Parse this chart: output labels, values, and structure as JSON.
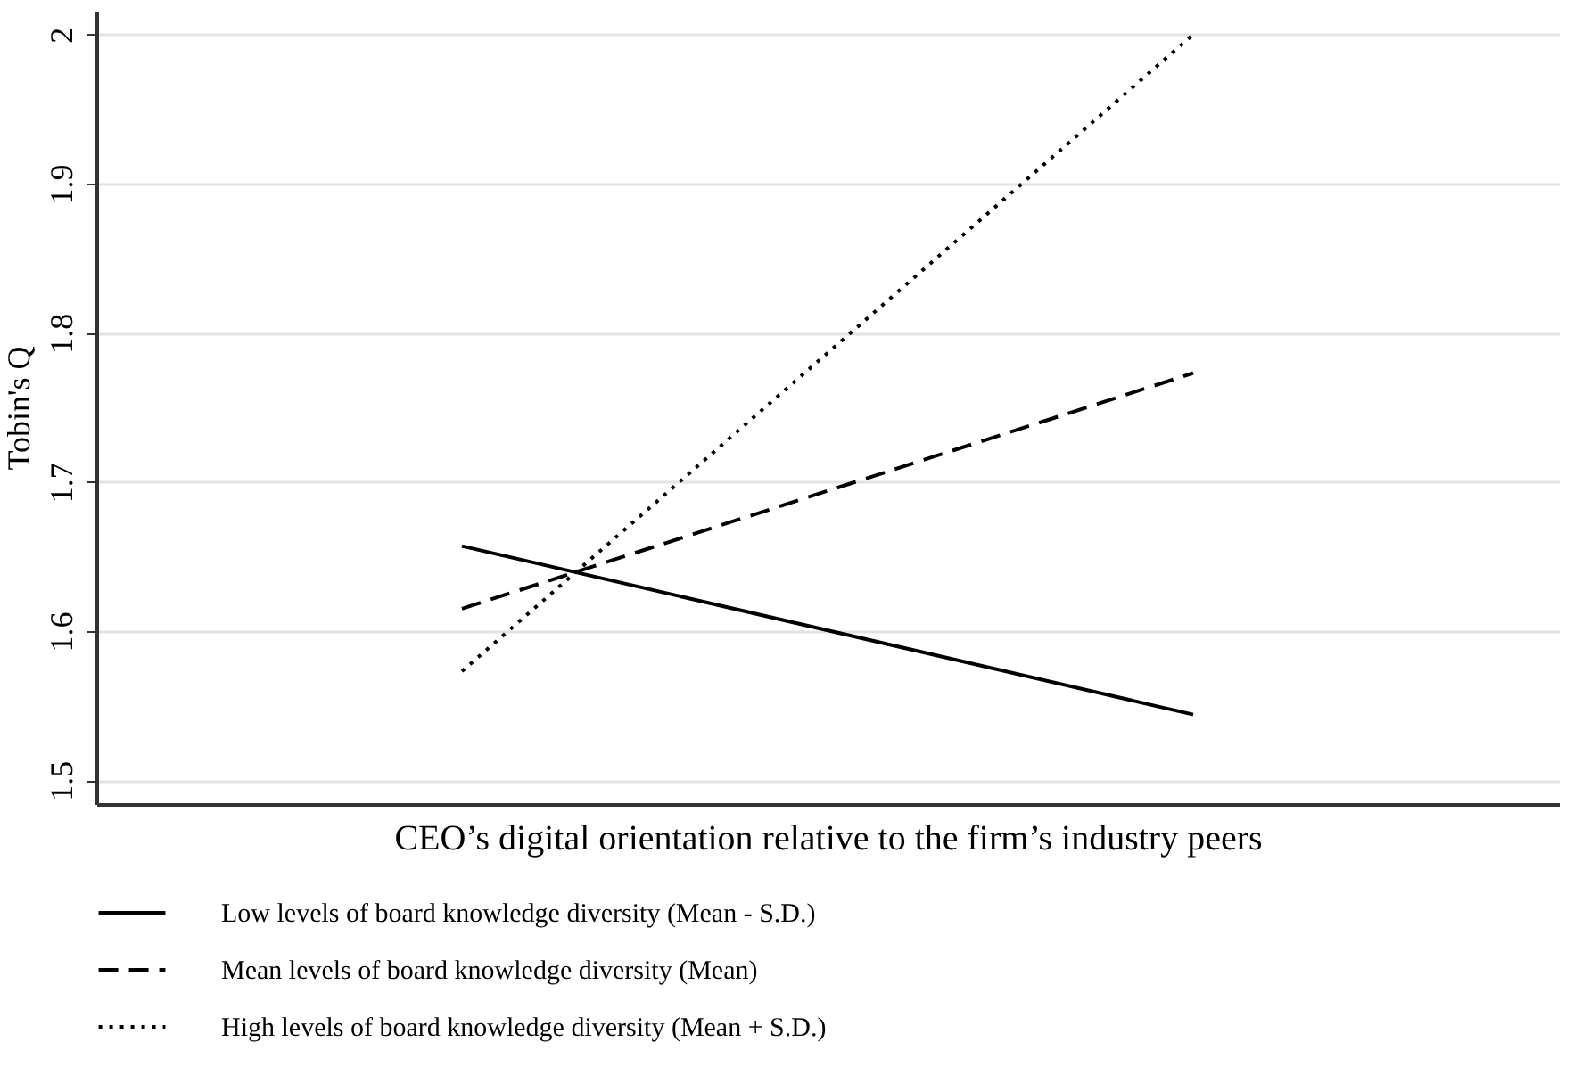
{
  "chart_data": {
    "type": "line",
    "xlabel": "CEO’s digital orientation relative to the firm’s industry peers",
    "ylabel": "Tobin's Q",
    "categories": [
      null,
      null
    ],
    "series": [
      {
        "name": "Low levels of board knowledge diversity (Mean - S.D.)",
        "color": "#000000",
        "line_style": "solid",
        "values": [
          1.657,
          1.544
        ]
      },
      {
        "name": "Mean levels of board knowledge diversity (Mean)",
        "color": "#000000",
        "line_style": "dashed",
        "values": [
          1.615,
          1.773
        ]
      },
      {
        "name": "High levels of board knowledge diversity (Mean + S.D.)",
        "color": "#000000",
        "line_style": "dotted",
        "values": [
          1.573,
          2.0
        ]
      }
    ],
    "ylim": [
      1.484,
      2.016
    ],
    "yticks": [
      1.5,
      1.6,
      1.7,
      1.8,
      1.9,
      2
    ],
    "grid": "y",
    "legend": "bottom",
    "tick_labels": "y",
    "marker": "none"
  }
}
